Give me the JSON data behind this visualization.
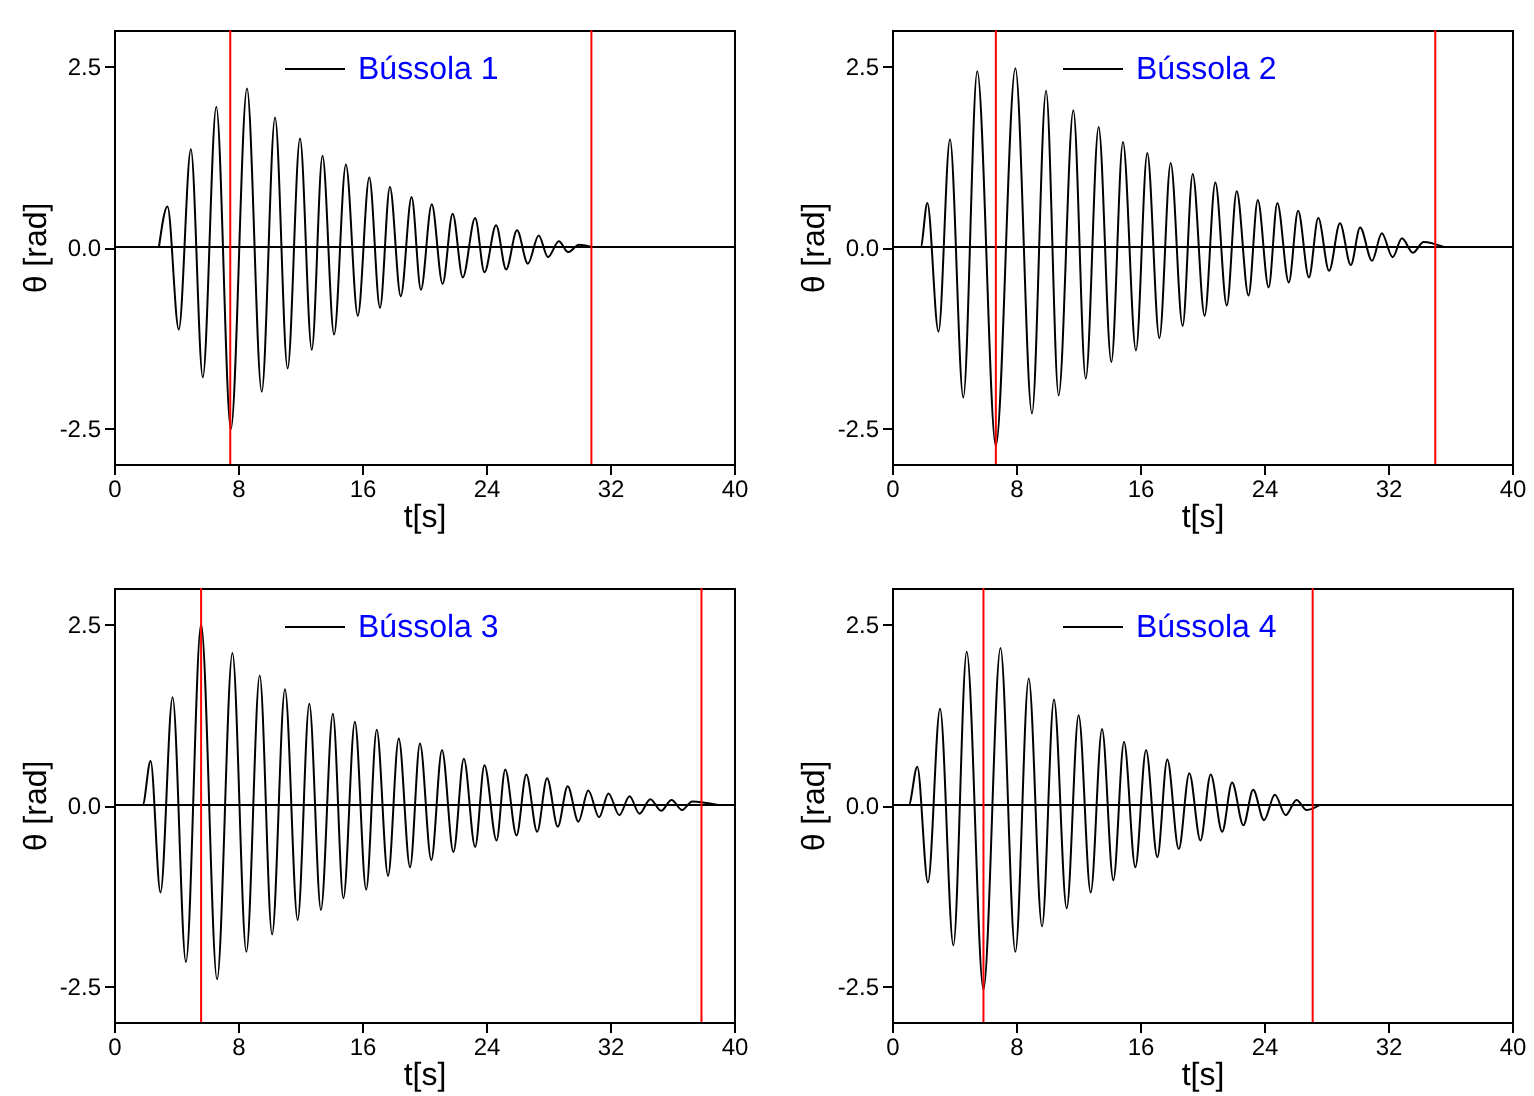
{
  "chart_data": [
    {
      "type": "line",
      "xlabel": "t[s]",
      "ylabel": "θ [rad]",
      "xlim": [
        0,
        40
      ],
      "xticks": [
        0,
        8,
        16,
        24,
        32,
        40
      ],
      "ylim": [
        -3,
        3
      ],
      "yticks": [
        {
          "value": -2.5,
          "label": "-2.5"
        },
        {
          "value": 0,
          "label": "0.0"
        },
        {
          "value": 2.5,
          "label": "2.5"
        }
      ],
      "legend": "top",
      "grid": false,
      "marker": "none",
      "line_style": "solid",
      "series": [
        {
          "name": "Bússola 1",
          "color": "#000000",
          "x": [
            2.9,
            3.45,
            4.18,
            4.96,
            5.73,
            6.6,
            7.54,
            8.58,
            9.53,
            10.39,
            11.2,
            12.0,
            12.76,
            13.45,
            14.2,
            14.96,
            15.73,
            16.47,
            17.16,
            17.8,
            18.5,
            19.2,
            19.8,
            20.5,
            21.2,
            21.85,
            22.5,
            23.3,
            23.9,
            24.65,
            25.3,
            26.0,
            26.7,
            27.4,
            28.0,
            28.7,
            29.3,
            30.0,
            30.8
          ],
          "values": [
            0,
            0.56,
            -1.14,
            1.35,
            -1.8,
            1.94,
            -2.52,
            2.19,
            -2.0,
            1.79,
            -1.68,
            1.5,
            -1.42,
            1.26,
            -1.21,
            1.14,
            -0.95,
            0.96,
            -0.84,
            0.83,
            -0.68,
            0.69,
            -0.59,
            0.59,
            -0.51,
            0.46,
            -0.42,
            0.4,
            -0.35,
            0.3,
            -0.31,
            0.23,
            -0.23,
            0.16,
            -0.14,
            0.08,
            -0.07,
            0.03,
            0
          ]
        }
      ],
      "ref_lines": [
        {
          "axis": "y",
          "value": 0,
          "color": "#000000"
        },
        {
          "axis": "x",
          "value": 7.5,
          "color": "#ff0000"
        },
        {
          "axis": "x",
          "value": 30.8,
          "color": "#ff0000"
        }
      ]
    },
    {
      "type": "line",
      "xlabel": "t[s]",
      "ylabel": "θ [rad]",
      "xlim": [
        0,
        40
      ],
      "xticks": [
        0,
        8,
        16,
        24,
        32,
        40
      ],
      "ylim": [
        -3,
        3
      ],
      "yticks": [
        {
          "value": -2.5,
          "label": "-2.5"
        },
        {
          "value": 0,
          "label": "0.0"
        },
        {
          "value": 2.5,
          "label": "2.5"
        }
      ],
      "legend": "top",
      "grid": false,
      "marker": "none",
      "line_style": "solid",
      "series": [
        {
          "name": "Bússola 2",
          "color": "#000000",
          "x": [
            0,
            1.85,
            2.28,
            3.0,
            3.74,
            4.6,
            5.5,
            6.7,
            7.96,
            9.03,
            9.94,
            10.75,
            11.7,
            12.5,
            13.33,
            14.15,
            14.9,
            15.74,
            16.47,
            17.25,
            17.98,
            18.75,
            19.4,
            20.17,
            20.86,
            21.6,
            22.24,
            23.0,
            23.6,
            24.3,
            24.86,
            25.6,
            26.2,
            26.9,
            27.5,
            28.2,
            28.9,
            29.6,
            30.2,
            30.97,
            31.6,
            32.3,
            32.9,
            33.6,
            34.3,
            35.6
          ],
          "values": [
            0,
            0,
            0.61,
            -1.17,
            1.49,
            -2.08,
            2.43,
            -2.75,
            2.47,
            -2.3,
            2.16,
            -2.05,
            1.89,
            -1.82,
            1.66,
            -1.59,
            1.45,
            -1.43,
            1.3,
            -1.26,
            1.16,
            -1.09,
            1.01,
            -0.95,
            0.89,
            -0.81,
            0.77,
            -0.67,
            0.65,
            -0.56,
            0.61,
            -0.49,
            0.5,
            -0.42,
            0.4,
            -0.33,
            0.33,
            -0.25,
            0.27,
            -0.19,
            0.19,
            -0.14,
            0.12,
            -0.08,
            0.07,
            0
          ]
        }
      ],
      "ref_lines": [
        {
          "axis": "y",
          "value": 0,
          "color": "#000000"
        },
        {
          "axis": "x",
          "value": 6.7,
          "color": "#ff0000"
        },
        {
          "axis": "x",
          "value": 35.05,
          "color": "#ff0000"
        }
      ]
    },
    {
      "type": "line",
      "xlabel": "t[s]",
      "ylabel": "θ [rad]",
      "xlim": [
        0,
        40
      ],
      "xticks": [
        0,
        8,
        16,
        24,
        32,
        40
      ],
      "ylim": [
        -3,
        3
      ],
      "yticks": [
        {
          "value": -2.5,
          "label": "-2.5"
        },
        {
          "value": 0,
          "label": "0.0"
        },
        {
          "value": 2.5,
          "label": "2.5"
        }
      ],
      "legend": "top",
      "grid": false,
      "marker": "none",
      "line_style": "solid",
      "series": [
        {
          "name": "Bússola 3",
          "color": "#000000",
          "x": [
            0,
            1.85,
            2.36,
            3.0,
            3.78,
            4.64,
            5.62,
            6.65,
            7.64,
            8.54,
            9.4,
            10.2,
            11.03,
            11.85,
            12.6,
            13.35,
            14.12,
            14.8,
            15.54,
            16.27,
            16.95,
            17.68,
            18.37,
            19.1,
            19.74,
            20.47,
            21.16,
            21.9,
            22.57,
            23.3,
            23.9,
            24.68,
            25.24,
            25.97,
            26.6,
            27.3,
            27.94,
            28.63,
            29.27,
            29.96,
            30.6,
            31.3,
            31.9,
            32.6,
            33.26,
            33.9,
            34.6,
            35.3,
            35.97,
            36.65,
            37.3,
            38.97
          ],
          "values": [
            0,
            0,
            0.61,
            -1.21,
            1.49,
            -2.17,
            2.5,
            -2.41,
            2.1,
            -2.03,
            1.79,
            -1.79,
            1.6,
            -1.59,
            1.4,
            -1.45,
            1.26,
            -1.29,
            1.15,
            -1.17,
            1.04,
            -0.98,
            0.92,
            -0.86,
            0.85,
            -0.76,
            0.76,
            -0.65,
            0.64,
            -0.58,
            0.55,
            -0.49,
            0.49,
            -0.42,
            0.42,
            -0.37,
            0.37,
            -0.3,
            0.26,
            -0.23,
            0.2,
            -0.17,
            0.16,
            -0.14,
            0.12,
            -0.12,
            0.08,
            -0.08,
            0.07,
            -0.07,
            0.05,
            0
          ]
        }
      ],
      "ref_lines": [
        {
          "axis": "y",
          "value": 0,
          "color": "#000000"
        },
        {
          "axis": "x",
          "value": 5.62,
          "color": "#ff0000"
        },
        {
          "axis": "x",
          "value": 37.9,
          "color": "#ff0000"
        }
      ]
    },
    {
      "type": "line",
      "xlabel": "t[s]",
      "ylabel": "θ [rad]",
      "xlim": [
        0,
        40
      ],
      "xticks": [
        0,
        8,
        16,
        24,
        32,
        40
      ],
      "ylim": [
        -3,
        3
      ],
      "yticks": [
        {
          "value": -2.5,
          "label": "-2.5"
        },
        {
          "value": 0,
          "label": "0.0"
        },
        {
          "value": 2.5,
          "label": "2.5"
        }
      ],
      "legend": "top",
      "grid": false,
      "marker": "none",
      "line_style": "solid",
      "series": [
        {
          "name": "Bússola 4",
          "color": "#000000",
          "x": [
            0,
            1.08,
            1.63,
            2.32,
            3.1,
            3.96,
            4.82,
            5.9,
            7.0,
            7.96,
            8.82,
            9.68,
            10.45,
            11.27,
            12.04,
            12.82,
            13.55,
            14.28,
            14.97,
            15.7,
            16.39,
            17.12,
            17.76,
            18.5,
            19.18,
            19.9,
            20.56,
            21.3,
            21.94,
            22.67,
            23.3,
            24.0,
            24.7,
            25.4,
            26.1,
            26.75,
            27.6
          ],
          "values": [
            0,
            0,
            0.53,
            -1.07,
            1.33,
            -1.94,
            2.12,
            -2.55,
            2.17,
            -2.03,
            1.75,
            -1.68,
            1.46,
            -1.43,
            1.24,
            -1.21,
            1.05,
            -1.04,
            0.87,
            -0.86,
            0.76,
            -0.72,
            0.63,
            -0.61,
            0.44,
            -0.49,
            0.42,
            -0.37,
            0.31,
            -0.28,
            0.21,
            -0.21,
            0.14,
            -0.14,
            0.07,
            -0.07,
            0
          ]
        }
      ],
      "ref_lines": [
        {
          "axis": "y",
          "value": 0,
          "color": "#000000"
        },
        {
          "axis": "x",
          "value": 5.9,
          "color": "#ff0000"
        },
        {
          "axis": "x",
          "value": 27.14,
          "color": "#ff0000"
        }
      ]
    }
  ]
}
